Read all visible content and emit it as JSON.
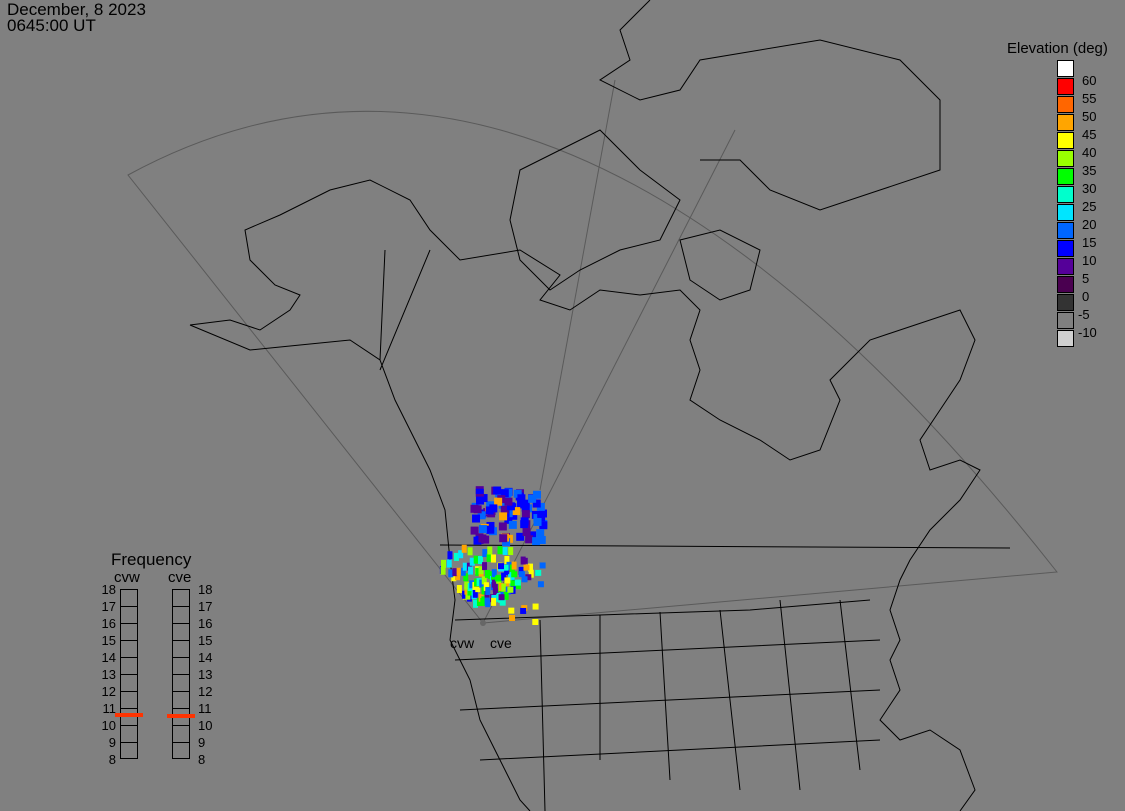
{
  "header": {
    "date": "December, 8 2023",
    "time": "0645:00 UT"
  },
  "map": {
    "background": "#808080",
    "radars": [
      {
        "name": "cvw"
      },
      {
        "name": "cve"
      }
    ]
  },
  "colorbar": {
    "title": "Elevation (deg)",
    "colors": [
      "#ffffff",
      "#ff0000",
      "#ff6600",
      "#ffa500",
      "#ffff00",
      "#99ff00",
      "#00ff00",
      "#00ffcc",
      "#00e5ff",
      "#0066ff",
      "#0000ff",
      "#550099",
      "#4a0050",
      "#333333",
      "#808080",
      "#d0d0d0"
    ],
    "labels": [
      "60",
      "55",
      "50",
      "45",
      "40",
      "35",
      "30",
      "25",
      "20",
      "15",
      "10",
      "5",
      "0",
      "-5",
      "-10"
    ]
  },
  "frequency": {
    "title": "Frequency",
    "unit_range": [
      8,
      18
    ],
    "ticks": [
      "18",
      "17",
      "16",
      "15",
      "14",
      "13",
      "12",
      "11",
      "10",
      "9",
      "8"
    ],
    "radars": [
      {
        "name": "cvw",
        "value": 10.6
      },
      {
        "name": "cve",
        "value": 10.55
      }
    ],
    "marker_color": "#ff3300"
  }
}
